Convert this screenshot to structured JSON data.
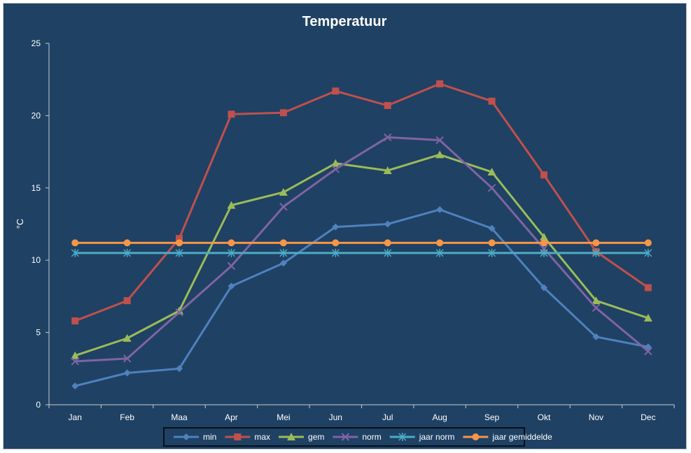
{
  "chart_data": {
    "type": "line",
    "title": "Temperatuur",
    "xlabel": "",
    "ylabel": "°C",
    "ylim": [
      0,
      25
    ],
    "yticks": [
      0,
      5,
      10,
      15,
      20,
      25
    ],
    "grid": false,
    "legend_position": "bottom",
    "categories": [
      "Jan",
      "Feb",
      "Maa",
      "Apr",
      "Mei",
      "Jun",
      "Jul",
      "Aug",
      "Sep",
      "Okt",
      "Nov",
      "Dec"
    ],
    "series": [
      {
        "name": "min",
        "color": "#4f81bd",
        "marker": "diamond",
        "values": [
          1.3,
          2.2,
          2.5,
          8.2,
          9.8,
          12.3,
          12.5,
          13.5,
          12.2,
          8.1,
          4.7,
          4.0
        ]
      },
      {
        "name": "max",
        "color": "#c0504d",
        "marker": "square",
        "values": [
          5.8,
          7.2,
          11.5,
          20.1,
          20.2,
          21.7,
          20.7,
          22.2,
          21.0,
          15.9,
          10.6,
          8.1
        ]
      },
      {
        "name": "gem",
        "color": "#9bbb59",
        "marker": "triangle",
        "values": [
          3.4,
          4.6,
          6.5,
          13.8,
          14.7,
          16.7,
          16.2,
          17.3,
          16.1,
          11.6,
          7.2,
          6.0
        ]
      },
      {
        "name": "norm",
        "color": "#8064a2",
        "marker": "x",
        "values": [
          3.0,
          3.2,
          6.4,
          9.6,
          13.7,
          16.3,
          18.5,
          18.3,
          15.0,
          10.8,
          6.7,
          3.7
        ]
      },
      {
        "name": "jaar norm",
        "color": "#4bacc6",
        "marker": "star",
        "values": [
          10.5,
          10.5,
          10.5,
          10.5,
          10.5,
          10.5,
          10.5,
          10.5,
          10.5,
          10.5,
          10.5,
          10.5
        ]
      },
      {
        "name": "jaar gemiddelde",
        "color": "#f79646",
        "marker": "circle",
        "values": [
          11.2,
          11.2,
          11.2,
          11.2,
          11.2,
          11.2,
          11.2,
          11.2,
          11.2,
          11.2,
          11.2,
          11.2
        ]
      }
    ]
  }
}
